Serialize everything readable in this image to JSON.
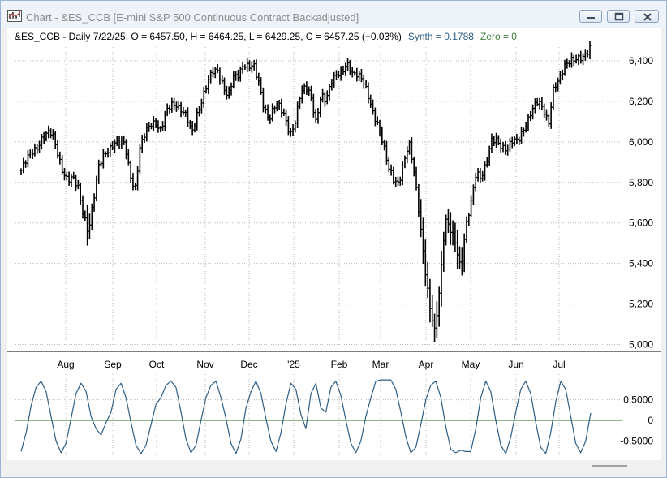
{
  "window": {
    "title": "Chart - &ES_CCB [E-mini S&P 500 Continuous Contract Backadjusted]"
  },
  "icons": {
    "app": "chart-app-icon",
    "minimize": "minimize-icon",
    "maximize": "maximize-icon",
    "close": "close-icon"
  },
  "header": {
    "symbol_line": "&ES_CCB - Daily 7/22/25:  O = 6457.50,  H = 6464.25,  L = 6429.25,  C = 6457.25 (+0.03%)",
    "synth": "Synth = 0.1788",
    "zero": "Zero = 0"
  },
  "colors": {
    "bars": "#000000",
    "synth_line": "#2e5e86",
    "zero_line": "#4f8f3f",
    "grid": "#b8b8b8"
  },
  "chart_data": [
    {
      "type": "ohlc",
      "series": [
        {
          "name": "&ES_CCB"
        }
      ],
      "y_ticks": [
        "6,400",
        "6,200",
        "6,000",
        "5,800",
        "5,600",
        "5,400",
        "5,200",
        "5,000"
      ],
      "ylim": [
        4990,
        6480
      ],
      "x_ticks": [
        "Aug",
        "Sep",
        "Oct",
        "Nov",
        "Dec",
        "'25",
        "Feb",
        "Mar",
        "Apr",
        "May",
        "Jun",
        "Jul"
      ],
      "grid": true,
      "close": [
        5860,
        5905,
        5950,
        5975,
        6010,
        6035,
        6050,
        5960,
        5850,
        5800,
        5830,
        5790,
        5640,
        5540,
        5720,
        5890,
        5930,
        5950,
        6000,
        6010,
        5990,
        5840,
        5760,
        5980,
        6040,
        6080,
        6100,
        6060,
        6140,
        6180,
        6190,
        6160,
        6120,
        6040,
        6140,
        6210,
        6280,
        6350,
        6360,
        6280,
        6210,
        6320,
        6340,
        6380,
        6360,
        6380,
        6300,
        6160,
        6100,
        6180,
        6190,
        6120,
        6020,
        6100,
        6250,
        6270,
        6220,
        6100,
        6240,
        6200,
        6290,
        6340,
        6350,
        6380,
        6330,
        6340,
        6320,
        6230,
        6140,
        6090,
        6000,
        5870,
        5810,
        5800,
        5900,
        5990,
        5850,
        5650,
        5400,
        5180,
        5060,
        5300,
        5620,
        5560,
        5500,
        5380,
        5580,
        5690,
        5850,
        5830,
        5900,
        6000,
        6010,
        5980,
        5960,
        6000,
        6010,
        6060,
        6100,
        6160,
        6210,
        6170,
        6080,
        6260,
        6310,
        6380,
        6390,
        6400,
        6420,
        6430,
        6457.25
      ]
    },
    {
      "type": "line",
      "series": [
        {
          "name": "Synth"
        },
        {
          "name": "Zero"
        }
      ],
      "y_ticks": [
        "0.5000",
        "0",
        "-0.5000"
      ],
      "ylim": [
        -0.88,
        1.08
      ],
      "grid": true,
      "synth": [
        -0.75,
        -0.3,
        0.35,
        0.8,
        0.95,
        0.7,
        0.1,
        -0.5,
        -0.78,
        -0.55,
        0.05,
        0.65,
        0.9,
        0.7,
        0.1,
        -0.2,
        -0.35,
        -0.05,
        0.2,
        0.75,
        0.9,
        0.55,
        -0.05,
        -0.6,
        -0.8,
        -0.6,
        -0.1,
        0.4,
        0.55,
        0.85,
        0.95,
        0.8,
        0.2,
        -0.45,
        -0.78,
        -0.6,
        0.0,
        0.55,
        0.85,
        0.95,
        0.55,
        0.05,
        -0.55,
        -0.8,
        -0.45,
        0.3,
        0.7,
        0.95,
        0.65,
        0.05,
        -0.5,
        -0.75,
        -0.3,
        0.4,
        0.9,
        0.75,
        0.15,
        -0.2,
        0.65,
        0.9,
        0.3,
        0.2,
        0.8,
        0.95,
        0.6,
        0.0,
        -0.55,
        -0.78,
        -0.5,
        0.1,
        0.55,
        0.95,
        0.98,
        0.98,
        0.98,
        0.75,
        0.2,
        -0.4,
        -0.78,
        -0.65,
        -0.1,
        0.5,
        0.85,
        0.95,
        0.55,
        -0.15,
        -0.7,
        -0.78,
        -0.72,
        -0.75,
        -0.75,
        -0.2,
        0.55,
        0.95,
        0.7,
        0.0,
        -0.6,
        -0.8,
        -0.4,
        0.2,
        0.75,
        0.95,
        0.65,
        -0.05,
        -0.65,
        -0.8,
        -0.3,
        0.45,
        0.95,
        0.75,
        0.1,
        -0.55,
        -0.78,
        -0.5,
        0.18
      ],
      "zero": 0
    }
  ]
}
